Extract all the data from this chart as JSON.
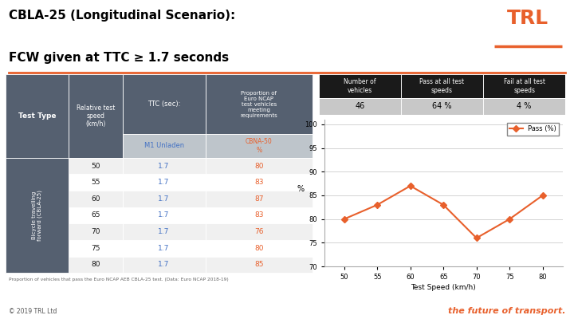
{
  "title_line1": "CBLA-25 (Longitudinal Scenario):",
  "title_line2": "FCW given at TTC ≥ 1.7 seconds",
  "title_fontsize": 11,
  "title_color": "#000000",
  "table_row_label": "Bicycle travelling\nforward (CBLA-25)",
  "table_speeds": [
    50,
    55,
    60,
    65,
    70,
    75,
    80
  ],
  "table_ttc": [
    "1.7",
    "1.7",
    "1.7",
    "1.7",
    "1.7",
    "1.7",
    "1.7"
  ],
  "table_cbna50": [
    80,
    83,
    87,
    83,
    76,
    80,
    85
  ],
  "header_bg_color": "#556070",
  "subheader_bg_color": "#bec5cb",
  "row_even_color": "#f0f0f0",
  "row_odd_color": "#ffffff",
  "header_text_color": "#ffffff",
  "ttc_text_color": "#4472c4",
  "cbna_text_color": "#e8602c",
  "summary_headers": [
    "Number of\nvehicles",
    "Pass at all test\nspeeds",
    "Fail at all test\nspeeds"
  ],
  "summary_values": [
    "46",
    "64 %",
    "4 %"
  ],
  "summary_header_bg": "#1a1a1a",
  "summary_header_text": "#ffffff",
  "summary_value_bg": "#c8c8c8",
  "summary_value_text": "#000000",
  "chart_x": [
    50,
    55,
    60,
    65,
    70,
    75,
    80
  ],
  "chart_y": [
    80,
    83,
    87,
    83,
    76,
    80,
    85
  ],
  "chart_line_color": "#e8602c",
  "chart_marker": "D",
  "chart_xlabel": "Test Speed (km/h)",
  "chart_ylabel": "%",
  "chart_ylim": [
    70,
    101
  ],
  "chart_yticks": [
    70,
    75,
    80,
    85,
    90,
    95,
    100
  ],
  "chart_xticks": [
    50,
    55,
    60,
    65,
    70,
    75,
    80
  ],
  "legend_label": "Pass (%)",
  "footnote": "Proportion of vehicles that pass the Euro NCAP AEB CBLA-25 test. (Data: Euro NCAP 2018-19)",
  "footer_text": "© 2019 TRL Ltd",
  "footer_right": "the future of transport.",
  "footer_right_color": "#e8602c",
  "orange_line_color": "#e8602c",
  "bg_color": "#ffffff"
}
